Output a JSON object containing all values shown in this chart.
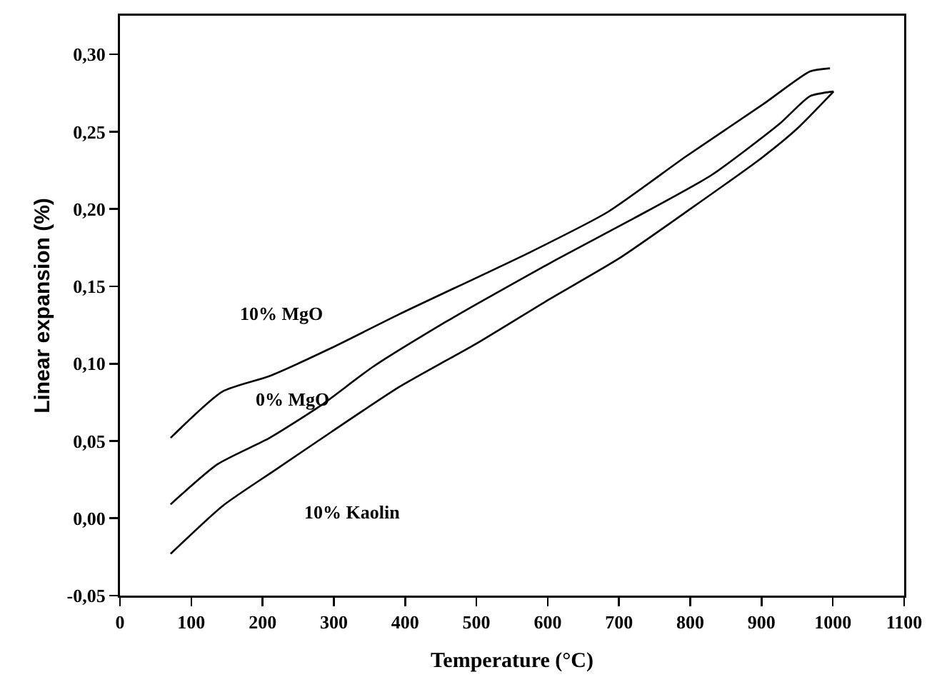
{
  "chart_data": {
    "type": "line",
    "xlabel": "Temperature (°C)",
    "ylabel": "Linear expansion (%)",
    "xlim": [
      0,
      1100
    ],
    "xticks": [
      0,
      100,
      200,
      300,
      400,
      500,
      600,
      700,
      800,
      900,
      1000,
      1100
    ],
    "ylim": [
      -0.05,
      0.325
    ],
    "yticks": [
      {
        "value": -0.05,
        "label": "-0,05"
      },
      {
        "value": 0,
        "label": "0,00"
      },
      {
        "value": 0.05,
        "label": "0,05"
      },
      {
        "value": 0.1,
        "label": "0,10"
      },
      {
        "value": 0.15,
        "label": "0,15"
      },
      {
        "value": 0.2,
        "label": "0,20"
      },
      {
        "value": 0.25,
        "label": "0,25"
      },
      {
        "value": 0.3,
        "label": "0,30"
      }
    ],
    "grid": false,
    "legend": false,
    "marker": "none",
    "line_style": "solid",
    "series": [
      {
        "name": "10% MgO",
        "color": "#000000",
        "x": [
          71,
          144,
          210,
          296,
          392,
          575,
          684,
          794,
          903,
          968,
          996
        ],
        "values": [
          0.052,
          0.082,
          0.092,
          0.11,
          0.132,
          0.172,
          0.198,
          0.234,
          0.268,
          0.289,
          0.291
        ]
      },
      {
        "name": "0% MgO",
        "color": "#000000",
        "x": [
          71,
          137,
          210,
          282,
          355,
          457,
          502,
          611,
          721,
          830,
          925,
          968,
          1001
        ],
        "values": [
          0.009,
          0.035,
          0.052,
          0.073,
          0.098,
          0.127,
          0.139,
          0.167,
          0.194,
          0.222,
          0.255,
          0.273,
          0.276
        ]
      },
      {
        "name": "10% Kaolin",
        "color": "#000000",
        "x": [
          71,
          144,
          217,
          297,
          392,
          500,
          600,
          700,
          800,
          900,
          950,
          1001
        ],
        "values": [
          -0.023,
          0.008,
          0.031,
          0.056,
          0.085,
          0.113,
          0.141,
          0.168,
          0.2,
          0.233,
          0.252,
          0.276
        ]
      }
    ]
  }
}
